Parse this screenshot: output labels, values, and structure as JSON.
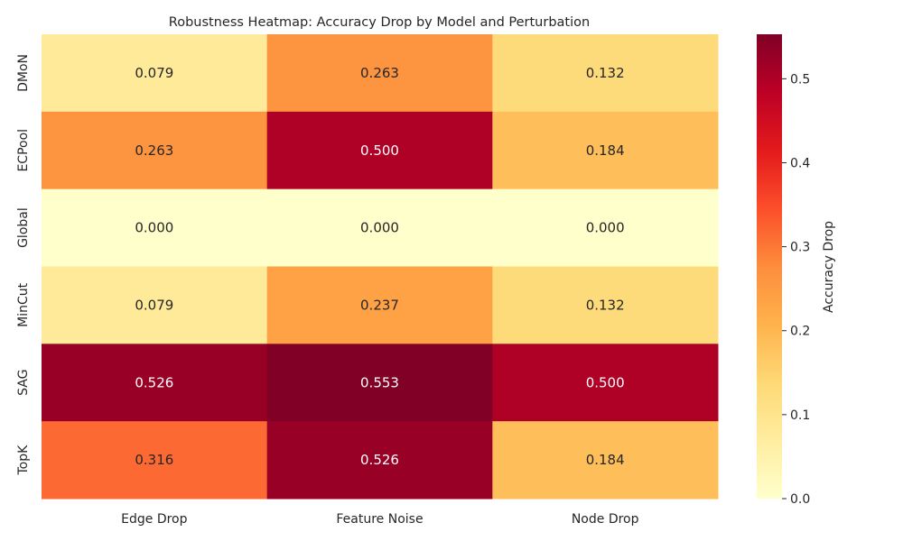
{
  "chart_data": {
    "type": "heatmap",
    "title": "Robustness Heatmap: Accuracy Drop by Model and Perturbation",
    "xlabel": "",
    "ylabel": "",
    "x_categories": [
      "Edge Drop",
      "Feature Noise",
      "Node Drop"
    ],
    "y_categories": [
      "DMoN",
      "ECPool",
      "Global",
      "MinCut",
      "SAG",
      "TopK"
    ],
    "values": [
      [
        0.079,
        0.263,
        0.132
      ],
      [
        0.263,
        0.5,
        0.184
      ],
      [
        0.0,
        0.0,
        0.0
      ],
      [
        0.079,
        0.237,
        0.132
      ],
      [
        0.526,
        0.553,
        0.5
      ],
      [
        0.316,
        0.526,
        0.184
      ]
    ],
    "cell_labels": [
      [
        "0.079",
        "0.263",
        "0.132"
      ],
      [
        "0.263",
        "0.500",
        "0.184"
      ],
      [
        "0.000",
        "0.000",
        "0.000"
      ],
      [
        "0.079",
        "0.237",
        "0.132"
      ],
      [
        "0.526",
        "0.553",
        "0.500"
      ],
      [
        "0.316",
        "0.526",
        "0.184"
      ]
    ],
    "colorbar": {
      "label": "Accuracy Drop",
      "colormap": "YlOrRd",
      "range": [
        0.0,
        0.553
      ],
      "ticks": [
        0.0,
        0.1,
        0.2,
        0.3,
        0.4,
        0.5
      ],
      "tick_labels": [
        "0.0",
        "0.1",
        "0.2",
        "0.3",
        "0.4",
        "0.5"
      ]
    },
    "grid": false,
    "legend": "colorbar-right"
  }
}
